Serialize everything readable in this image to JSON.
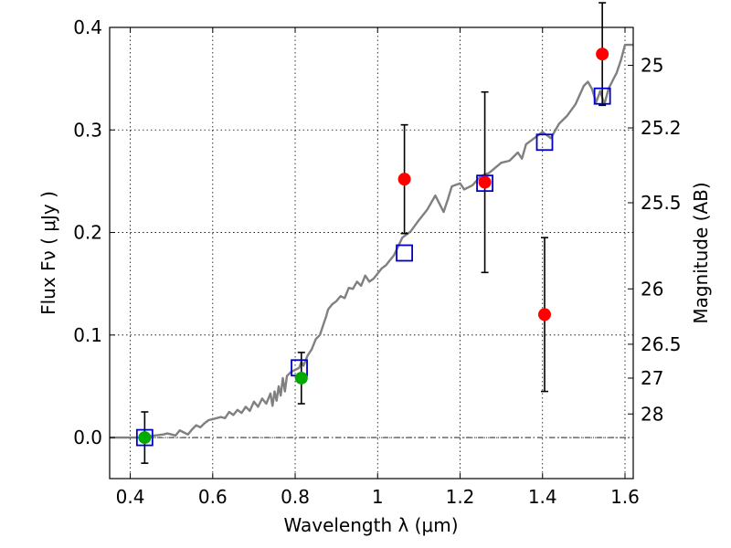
{
  "chart_data": {
    "type": "scatter",
    "xlabel": "Wavelength  λ (μm)",
    "ylabel": "Flux  Fν  ( μJy )",
    "ylabel_right": "Magnitude (AB)",
    "xlim": [
      0.35,
      1.62
    ],
    "ylim": [
      -0.04,
      0.4
    ],
    "grid": true,
    "x_ticks": [
      0.4,
      0.6,
      0.8,
      1.0,
      1.2,
      1.4,
      1.6
    ],
    "x_tick_labels": [
      "0.4",
      "0.6",
      "0.8",
      "1",
      "1.2",
      "1.4",
      "1.6"
    ],
    "y_ticks": [
      0.0,
      0.1,
      0.2,
      0.3,
      0.4
    ],
    "y_tick_labels": [
      "0.0",
      "0.1",
      "0.2",
      "0.3",
      "0.4"
    ],
    "right_ticks": [
      {
        "label": "25",
        "flux": 0.363
      },
      {
        "label": "25.2",
        "flux": 0.302
      },
      {
        "label": "25.5",
        "flux": 0.229
      },
      {
        "label": "26",
        "flux": 0.145
      },
      {
        "label": "26.5",
        "flux": 0.091
      },
      {
        "label": "27",
        "flux": 0.058
      },
      {
        "label": "28",
        "flux": 0.023
      }
    ],
    "colors": {
      "model": "#808080",
      "observed": "#ff0000",
      "optical": "#00aa00",
      "model_box": "#0000cc",
      "errorbar": "#000000"
    },
    "series": [
      {
        "kind": "model-spectrum",
        "x": [
          0.35,
          0.42,
          0.46,
          0.48,
          0.49,
          0.5,
          0.51,
          0.52,
          0.53,
          0.54,
          0.55,
          0.56,
          0.57,
          0.58,
          0.59,
          0.6,
          0.62,
          0.63,
          0.64,
          0.65,
          0.66,
          0.67,
          0.68,
          0.69,
          0.7,
          0.71,
          0.72,
          0.73,
          0.74,
          0.745,
          0.75,
          0.755,
          0.76,
          0.765,
          0.77,
          0.775,
          0.78,
          0.79,
          0.8,
          0.81,
          0.815,
          0.82,
          0.83,
          0.84,
          0.85,
          0.86,
          0.87,
          0.875,
          0.88,
          0.89,
          0.9,
          0.91,
          0.92,
          0.93,
          0.94,
          0.95,
          0.96,
          0.97,
          0.98,
          0.99,
          1.0,
          1.01,
          1.02,
          1.04,
          1.06,
          1.08,
          1.1,
          1.12,
          1.14,
          1.16,
          1.17,
          1.18,
          1.2,
          1.21,
          1.23,
          1.25,
          1.27,
          1.3,
          1.32,
          1.34,
          1.35,
          1.36,
          1.38,
          1.4,
          1.42,
          1.44,
          1.46,
          1.48,
          1.5,
          1.51,
          1.52,
          1.53,
          1.54,
          1.55,
          1.56,
          1.57,
          1.58,
          1.59,
          1.6,
          1.61,
          1.62
        ],
        "y": [
          0.0,
          0.0,
          0.002,
          0.003,
          0.004,
          0.003,
          0.002,
          0.007,
          0.005,
          0.003,
          0.008,
          0.012,
          0.01,
          0.014,
          0.017,
          0.018,
          0.02,
          0.019,
          0.025,
          0.022,
          0.027,
          0.024,
          0.03,
          0.026,
          0.035,
          0.03,
          0.038,
          0.033,
          0.043,
          0.031,
          0.045,
          0.036,
          0.05,
          0.041,
          0.058,
          0.045,
          0.06,
          0.064,
          0.066,
          0.068,
          0.074,
          0.07,
          0.08,
          0.086,
          0.096,
          0.1,
          0.112,
          0.118,
          0.125,
          0.13,
          0.133,
          0.138,
          0.136,
          0.146,
          0.145,
          0.152,
          0.148,
          0.158,
          0.152,
          0.155,
          0.16,
          0.165,
          0.168,
          0.178,
          0.195,
          0.201,
          0.212,
          0.222,
          0.236,
          0.22,
          0.232,
          0.245,
          0.248,
          0.242,
          0.246,
          0.255,
          0.258,
          0.268,
          0.27,
          0.278,
          0.272,
          0.286,
          0.292,
          0.298,
          0.292,
          0.306,
          0.314,
          0.325,
          0.343,
          0.347,
          0.34,
          0.327,
          0.338,
          0.325,
          0.34,
          0.348,
          0.356,
          0.368,
          0.383,
          0.383,
          0.383
        ]
      },
      {
        "kind": "model-flux",
        "marker": "open-square",
        "x": [
          0.435,
          0.81,
          1.065,
          1.26,
          1.405,
          1.545
        ],
        "y": [
          0.0,
          0.068,
          0.18,
          0.248,
          0.288,
          0.333
        ]
      },
      {
        "kind": "observed-optical",
        "marker": "filled-circle",
        "x": [
          0.435,
          0.815
        ],
        "y": [
          0.0,
          0.058
        ],
        "err": [
          0.025,
          0.025
        ]
      },
      {
        "kind": "observed-nir",
        "marker": "filled-circle",
        "x": [
          1.065,
          1.26,
          1.405,
          1.545
        ],
        "y": [
          0.252,
          0.249,
          0.12,
          0.374
        ],
        "err": [
          0.053,
          0.088,
          0.075,
          0.05
        ]
      }
    ]
  }
}
